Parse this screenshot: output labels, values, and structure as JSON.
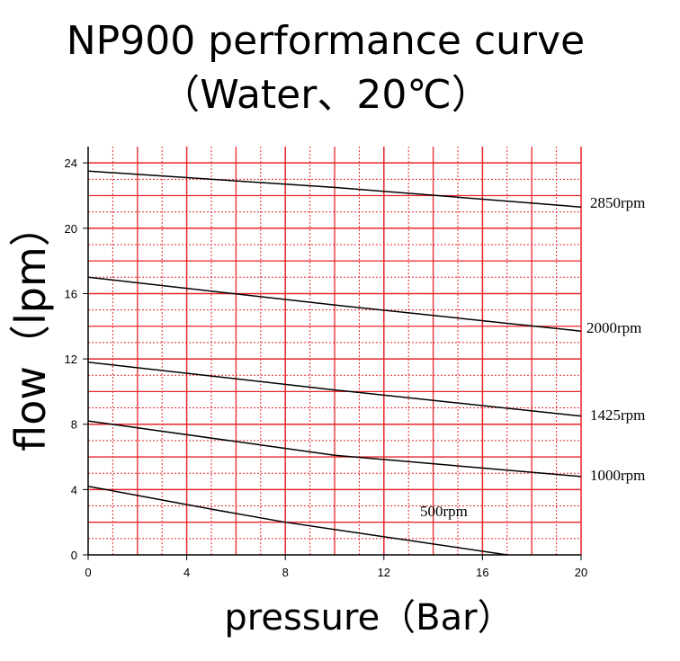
{
  "chart_data": {
    "type": "line",
    "title": "NP900 performance curve",
    "subtitle": "（Water、20℃）",
    "x_label": "pressure（Bar）",
    "y_label": "flow（lpm）",
    "xlim": [
      0,
      20
    ],
    "xticks": [
      0,
      4,
      8,
      12,
      16,
      20
    ],
    "ylim": [
      0,
      25
    ],
    "yticks": [
      0,
      4,
      8,
      12,
      16,
      20,
      24
    ],
    "grid": true,
    "grid_color": "#e8262b",
    "series": [
      {
        "name": "2850rpm",
        "color": "#000000",
        "x": [
          0,
          10,
          20
        ],
        "values": [
          23.5,
          22.5,
          21.3
        ]
      },
      {
        "name": "2000rpm",
        "color": "#000000",
        "x": [
          0,
          10,
          20
        ],
        "values": [
          17,
          15.3,
          13.7
        ]
      },
      {
        "name": "1425rpm",
        "color": "#000000",
        "x": [
          0,
          10,
          20
        ],
        "values": [
          11.8,
          10.1,
          8.5
        ]
      },
      {
        "name": "1000rpm",
        "color": "#000000",
        "x": [
          0,
          10,
          20
        ],
        "values": [
          8.2,
          6.1,
          4.8
        ]
      },
      {
        "name": "500rpm",
        "color": "#000000",
        "x": [
          0,
          5,
          8,
          17
        ],
        "values": [
          4.2,
          2.8,
          2.0,
          0
        ]
      }
    ]
  }
}
